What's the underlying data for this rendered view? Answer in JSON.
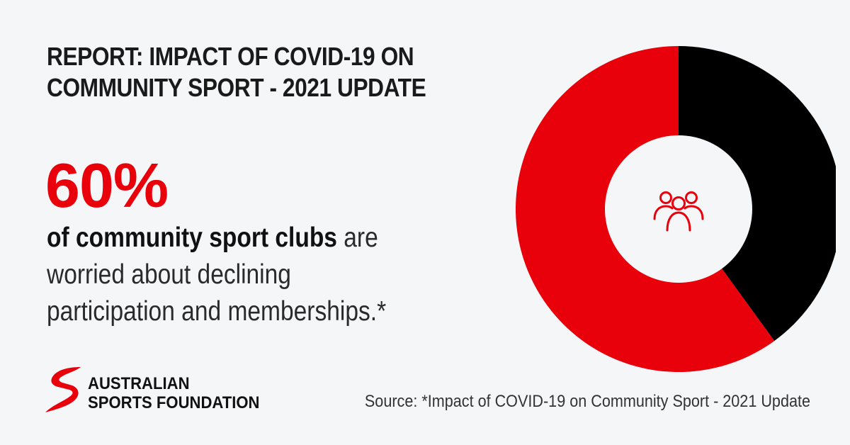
{
  "title": {
    "line1": "REPORT: IMPACT OF COVID-19 ON",
    "line2": "COMMUNITY SPORT - 2021 UPDATE"
  },
  "stat": {
    "value": "60%",
    "desc_bold": "of community sport clubs",
    "desc_rest1": " are",
    "desc_line2": "worried about declining",
    "desc_line3": "participation and memberships.*"
  },
  "logo": {
    "line1": "AUSTRALIAN",
    "line2": "SPORTS FOUNDATION"
  },
  "source": "Source: *Impact of COVID-19 on Community Sport - 2021 Update",
  "colors": {
    "accent": "#e8000b",
    "dark": "#000000",
    "background": "#f5f6f8"
  },
  "icons": {
    "center": "people-group-icon"
  },
  "chart_data": {
    "type": "pie",
    "donut": true,
    "start_angle": "12 o'clock",
    "direction": "clockwise",
    "series": [
      {
        "value": 40,
        "color": "#000000"
      },
      {
        "value": 60,
        "color": "#e8000b"
      }
    ]
  }
}
